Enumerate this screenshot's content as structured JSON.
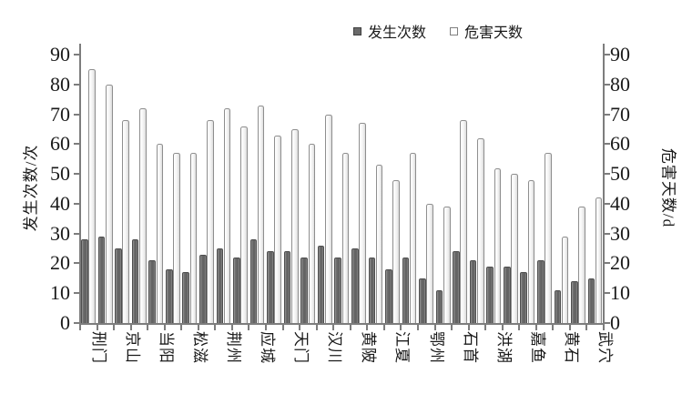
{
  "chart_data": {
    "type": "bar",
    "title": "",
    "series": [
      {
        "name": "发生次数",
        "values": [
          28,
          29,
          25,
          28,
          21,
          18,
          17,
          23,
          25,
          22,
          28,
          24,
          24,
          22,
          26,
          22,
          25,
          22,
          18,
          22,
          15,
          11,
          24,
          21,
          19,
          19,
          17,
          21,
          11,
          14,
          15
        ]
      },
      {
        "name": "危害天数",
        "values": [
          85,
          80,
          68,
          72,
          60,
          57,
          57,
          68,
          72,
          66,
          73,
          63,
          65,
          60,
          70,
          57,
          67,
          53,
          48,
          57,
          40,
          39,
          68,
          62,
          52,
          50,
          48,
          57,
          29,
          39,
          42
        ]
      }
    ],
    "x_tick_labels": [
      "刑门",
      "京山",
      "当阳",
      "松滋",
      "荆州",
      "应城",
      "天门",
      "汉川",
      "黄陂",
      "江夏",
      "鄂州",
      "石首",
      "洪湖",
      "嘉鱼",
      "黄石",
      "武穴"
    ],
    "x_label_interval": 2,
    "ylabel_left": "发生次数/次",
    "ylabel_right": "危害天数/d",
    "ylim": [
      0,
      90
    ],
    "yticks": [
      0,
      10,
      20,
      30,
      40,
      50,
      60,
      70,
      80,
      90
    ],
    "grid": false,
    "legend_position": "top-right"
  },
  "colors": {
    "dark_bar": "#6a6a6a",
    "dark_bar_border": "#4e4e4e",
    "light_bar": "#ffffff",
    "light_bar_border": "#8e8e8e",
    "axis": "#7d7d7d",
    "text": "#1a1a1a"
  }
}
